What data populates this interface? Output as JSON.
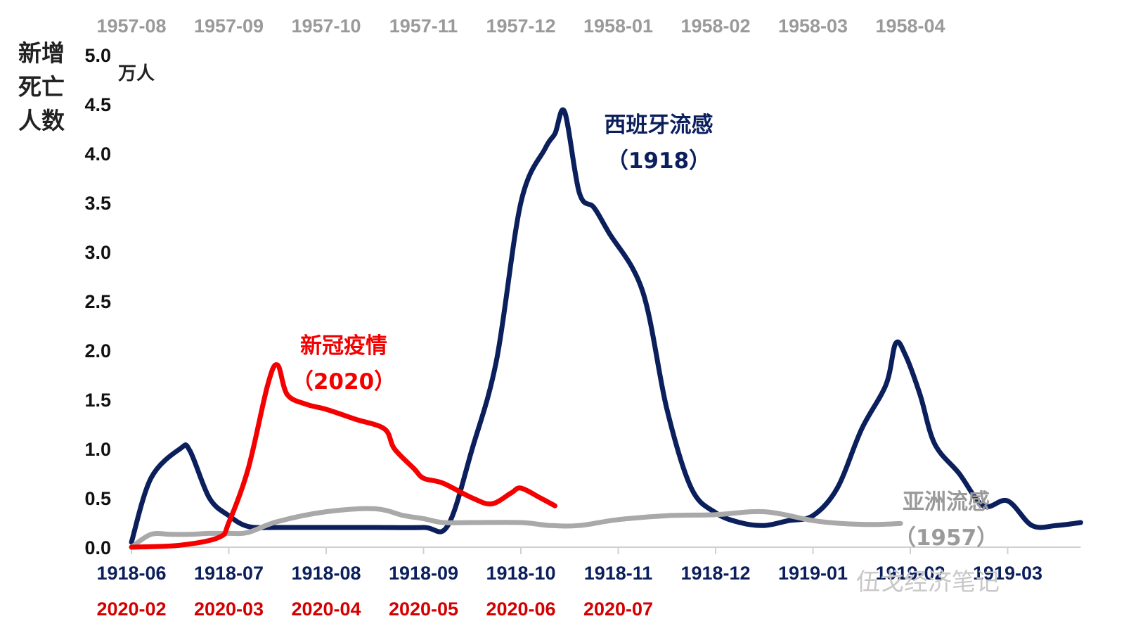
{
  "y_axis": {
    "title": "新增死亡人数",
    "unit": "万人"
  },
  "annotations": {
    "flu_1918": {
      "name": "西班牙流感",
      "year": "（1918）"
    },
    "covid_2020": {
      "name": "新冠疫情",
      "year": "（2020）"
    },
    "flu_1957": {
      "name": "亚洲流感",
      "year": "（1957）"
    }
  },
  "watermark": "伍戈经济笔记",
  "colors": {
    "flu_1918": "#0b1f5c",
    "covid_2020": "#f40000",
    "flu_1957": "#a9a9a9",
    "axis_text_1918": "#0b1f5c",
    "axis_text_2020": "#d40000",
    "axis_text_1957": "#9a9a9a"
  },
  "chart_data": {
    "type": "line",
    "y_ticks": [
      "0.0",
      "0.5",
      "1.0",
      "1.5",
      "2.0",
      "2.5",
      "3.0",
      "3.5",
      "4.0",
      "4.5",
      "5.0"
    ],
    "ylim": [
      0,
      5.0
    ],
    "x_axes": {
      "bottom_1918": [
        "1918-06",
        "1918-07",
        "1918-08",
        "1918-09",
        "1918-10",
        "1918-11",
        "1918-12",
        "1919-01",
        "1919-02",
        "1919-03"
      ],
      "bottom_2020": [
        "2020-02",
        "2020-03",
        "2020-04",
        "2020-05",
        "2020-06",
        "2020-07"
      ],
      "top_1957": [
        "1957-08",
        "1957-09",
        "1957-10",
        "1957-11",
        "1957-12",
        "1958-01",
        "1958-02",
        "1958-03",
        "1958-04"
      ]
    },
    "xlim_months_1918": [
      0,
      9.75
    ],
    "series": [
      {
        "key": "flu_1918",
        "x_months": [
          0,
          0.2,
          0.5,
          0.6,
          0.8,
          1.0,
          1.2,
          1.5,
          2.0,
          2.5,
          3.0,
          3.25,
          3.5,
          3.75,
          4.0,
          4.25,
          4.35,
          4.45,
          4.6,
          4.75,
          4.9,
          5.25,
          5.5,
          5.75,
          6.0,
          6.25,
          6.5,
          6.75,
          7.0,
          7.25,
          7.5,
          7.75,
          7.85,
          7.95,
          8.1,
          8.25,
          8.5,
          8.75,
          9.0,
          9.25,
          9.5,
          9.75
        ],
        "values": [
          0.05,
          0.7,
          1.0,
          0.98,
          0.5,
          0.32,
          0.21,
          0.2,
          0.2,
          0.2,
          0.2,
          0.22,
          1.0,
          1.9,
          3.5,
          4.05,
          4.2,
          4.42,
          3.6,
          3.45,
          3.2,
          2.6,
          1.4,
          0.6,
          0.35,
          0.25,
          0.22,
          0.27,
          0.32,
          0.6,
          1.2,
          1.65,
          2.07,
          1.95,
          1.55,
          1.05,
          0.75,
          0.42,
          0.47,
          0.22,
          0.22,
          0.25
        ]
      },
      {
        "key": "covid_2020",
        "x_months": [
          0,
          0.5,
          0.9,
          1.0,
          1.2,
          1.4,
          1.5,
          1.6,
          1.8,
          2.0,
          2.3,
          2.6,
          2.7,
          2.9,
          3.0,
          3.2,
          3.5,
          3.7,
          3.9,
          4.0,
          4.2,
          4.35
        ],
        "values": [
          0.0,
          0.02,
          0.1,
          0.25,
          0.8,
          1.65,
          1.85,
          1.55,
          1.45,
          1.4,
          1.3,
          1.2,
          1.0,
          0.8,
          0.7,
          0.65,
          0.5,
          0.44,
          0.55,
          0.6,
          0.5,
          0.42
        ]
      },
      {
        "key": "flu_1957",
        "x_months": [
          0,
          0.2,
          0.4,
          0.6,
          0.8,
          1.0,
          1.2,
          1.5,
          2.0,
          2.5,
          2.8,
          3.0,
          3.2,
          3.5,
          4.0,
          4.3,
          4.6,
          5.0,
          5.5,
          6.0,
          6.5,
          7.0,
          7.3,
          7.6,
          7.9
        ],
        "values": [
          0.0,
          0.13,
          0.13,
          0.13,
          0.14,
          0.14,
          0.15,
          0.26,
          0.36,
          0.39,
          0.32,
          0.29,
          0.25,
          0.25,
          0.25,
          0.22,
          0.22,
          0.28,
          0.32,
          0.33,
          0.36,
          0.27,
          0.24,
          0.23,
          0.24
        ]
      }
    ]
  }
}
